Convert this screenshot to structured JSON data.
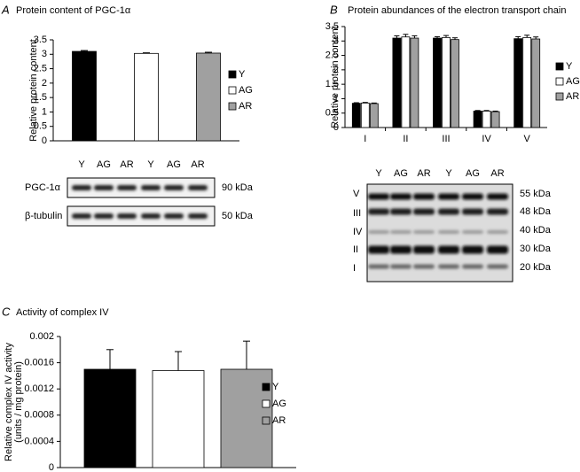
{
  "chart_data": [
    {
      "type": "bar",
      "panel_label": "A",
      "title": "Protein content of PGC-1α",
      "ylabel": [
        "Relative protein content"
      ],
      "categories": [
        null
      ],
      "ylim": [
        0,
        3.5
      ],
      "yticks": [
        0,
        0.5,
        1,
        1.5,
        2,
        2.5,
        3,
        3.5
      ],
      "series": [
        {
          "name": "Y",
          "color": "#000000",
          "values": [
            3.1
          ],
          "errors": [
            0.03
          ]
        },
        {
          "name": "AG",
          "color": "#ffffff",
          "values": [
            3.03
          ],
          "errors": [
            0.02
          ]
        },
        {
          "name": "AR",
          "color": "#a0a0a0",
          "values": [
            3.04
          ],
          "errors": [
            0.03
          ]
        }
      ]
    },
    {
      "type": "bar",
      "panel_label": "B",
      "title": "Protein abundances of the electron transport chain",
      "ylabel": [
        "Relative protein content"
      ],
      "categories": [
        "I",
        "II",
        "III",
        "IV",
        "V"
      ],
      "ylim": [
        0,
        3.5
      ],
      "yticks": [
        0,
        0.5,
        1,
        1.5,
        2,
        2.5,
        3,
        3.5
      ],
      "series": [
        {
          "name": "Y",
          "color": "#000000",
          "values": [
            0.84,
            3.1,
            3.1,
            0.57,
            3.08
          ],
          "errors": [
            0.02,
            0.08,
            0.05,
            0.02,
            0.07
          ]
        },
        {
          "name": "AG",
          "color": "#ffffff",
          "values": [
            0.85,
            3.14,
            3.12,
            0.57,
            3.12
          ],
          "errors": [
            0.02,
            0.09,
            0.07,
            0.02,
            0.08
          ]
        },
        {
          "name": "AR",
          "color": "#a0a0a0",
          "values": [
            0.83,
            3.1,
            3.05,
            0.55,
            3.07
          ],
          "errors": [
            0.02,
            0.08,
            0.06,
            0.02,
            0.07
          ]
        }
      ]
    },
    {
      "type": "bar",
      "panel_label": "C",
      "title": "Activity of complex IV",
      "ylabel": [
        "Relative complex IV activity",
        "(units / mg protein)"
      ],
      "categories": [
        null
      ],
      "ylim": [
        0,
        0.002
      ],
      "yticks": [
        0,
        0.0004,
        0.0008,
        0.0012,
        0.0016,
        0.002
      ],
      "series": [
        {
          "name": "Y",
          "color": "#000000",
          "values": [
            0.0015
          ],
          "errors": [
            0.0003
          ]
        },
        {
          "name": "AG",
          "color": "#ffffff",
          "values": [
            0.00148
          ],
          "errors": [
            0.00029
          ]
        },
        {
          "name": "AR",
          "color": "#a0a0a0",
          "values": [
            0.0015
          ],
          "errors": [
            0.00043
          ]
        }
      ]
    }
  ],
  "blots": {
    "a": {
      "lanes": [
        "Y",
        "AG",
        "AR",
        "Y",
        "AG",
        "AR"
      ],
      "rows": [
        {
          "label": "PGC-1α",
          "size": "90 kDa"
        },
        {
          "label": "β-tubulin",
          "size": "50 kDa"
        }
      ]
    },
    "b": {
      "lanes": [
        "Y",
        "AG",
        "AR",
        "Y",
        "AG",
        "AR"
      ],
      "complexes": [
        "V",
        "III",
        "IV",
        "II",
        "I"
      ],
      "sizes": [
        "55 kDa",
        "48 kDa",
        "40 kDa",
        "30 kDa",
        "20 kDa"
      ]
    }
  }
}
